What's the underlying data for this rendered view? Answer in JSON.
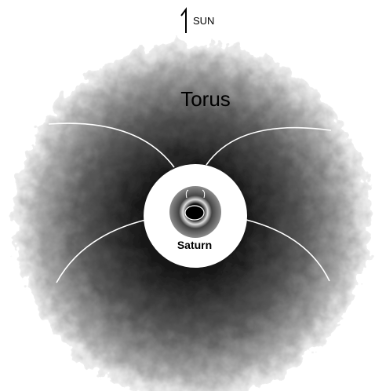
{
  "labels": {
    "sun": "SUN",
    "torus": "Torus",
    "saturn": "Saturn"
  }
}
